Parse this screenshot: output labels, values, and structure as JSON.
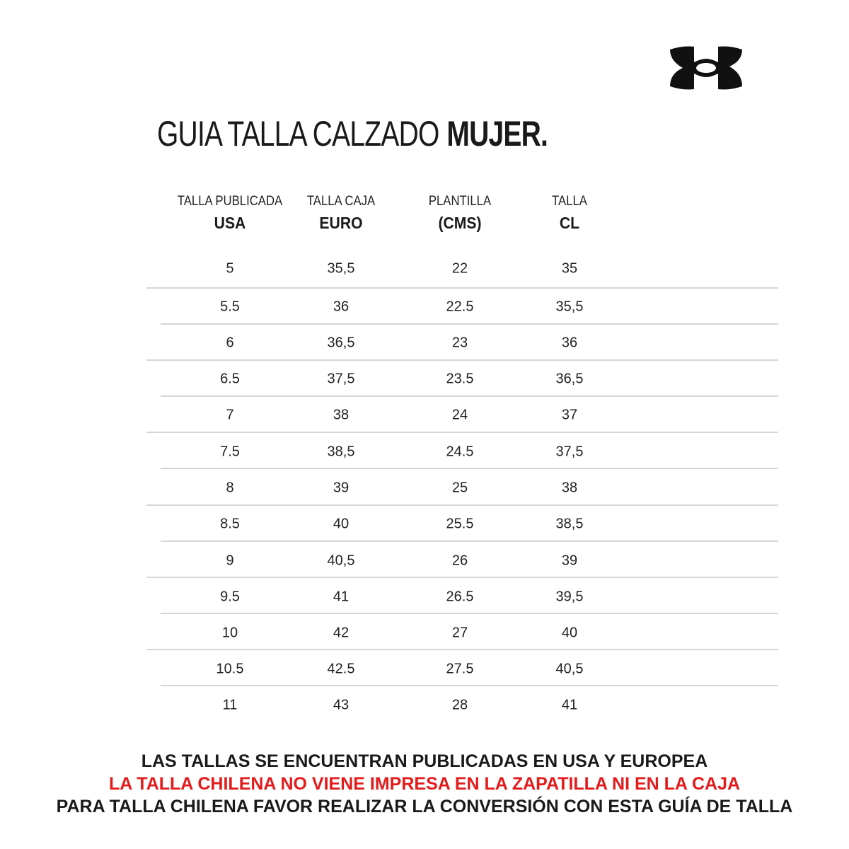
{
  "brand_logo": "under-armour-logo",
  "title": {
    "light": "GUIA TALLA CALZADO",
    "bold": "MUJER."
  },
  "table": {
    "headers": [
      {
        "line1": "TALLA PUBLICADA",
        "line2": "USA"
      },
      {
        "line1": "TALLA CAJA",
        "line2": "EURO"
      },
      {
        "line1": "PLANTILLA",
        "line2": "(CMS)"
      },
      {
        "line1": "TALLA",
        "line2": "CL"
      }
    ],
    "rows": [
      [
        "5",
        "35,5",
        "22",
        "35"
      ],
      [
        "5.5",
        "36",
        "22.5",
        "35,5"
      ],
      [
        "6",
        "36,5",
        "23",
        "36"
      ],
      [
        "6.5",
        "37,5",
        "23.5",
        "36,5"
      ],
      [
        "7",
        "38",
        "24",
        "37"
      ],
      [
        "7.5",
        "38,5",
        "24.5",
        "37,5"
      ],
      [
        "8",
        "39",
        "25",
        "38"
      ],
      [
        "8.5",
        "40",
        "25.5",
        "38,5"
      ],
      [
        "9",
        "40,5",
        "26",
        "39"
      ],
      [
        "9.5",
        "41",
        "26.5",
        "39,5"
      ],
      [
        "10",
        "42",
        "27",
        "40"
      ],
      [
        "10.5",
        "42.5",
        "27.5",
        "40,5"
      ],
      [
        "11",
        "43",
        "28",
        "41"
      ]
    ]
  },
  "footer": {
    "line1": "LAS TALLAS SE ENCUENTRAN PUBLICADAS EN USA Y EUROPEA",
    "line2": "LA TALLA CHILENA NO VIENE IMPRESA EN LA ZAPATILLA NI EN LA CAJA",
    "line3": "PARA TALLA CHILENA FAVOR REALIZAR LA CONVERSIÓN CON ESTA GUÍA DE TALLA"
  },
  "colors": {
    "text": "#1a1a1a",
    "warning": "#e31b1b",
    "divider": "#d6d6d6"
  }
}
